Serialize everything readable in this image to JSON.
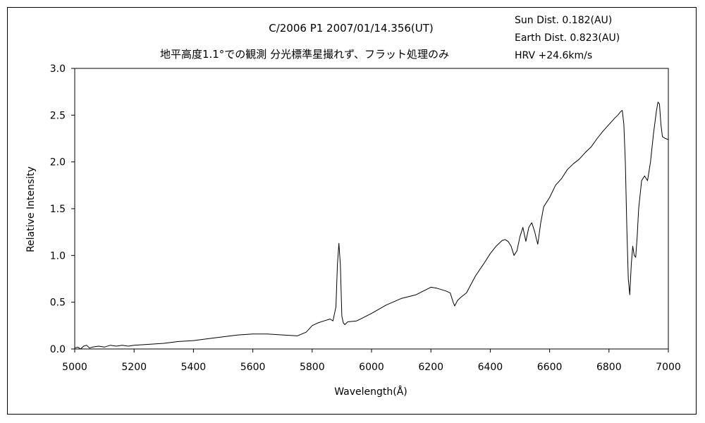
{
  "chart_data": {
    "type": "line",
    "title_line1": "C/2006 P1    2007/01/14.356(UT)",
    "title_line2": "地平高度1.1°での観測  分光標準星撮れず、フラット処理のみ",
    "info": [
      "Sun Dist. 0.182(AU)",
      "Earth Dist. 0.823(AU)",
      "HRV +24.6km/s"
    ],
    "xlabel": "Wavelength(Å)",
    "ylabel": "Relative Intensity",
    "xlim": [
      5000,
      7000
    ],
    "ylim": [
      0,
      3
    ],
    "xticks": [
      5000,
      5200,
      5400,
      5600,
      5800,
      6000,
      6200,
      6400,
      6600,
      6800,
      7000
    ],
    "yticks": [
      "0.0",
      "0.5",
      "1.0",
      "1.5",
      "2.0",
      "2.5",
      "3.0"
    ],
    "grid": false,
    "legend": "none",
    "series": [
      {
        "x": [
          5000,
          5010,
          5020,
          5030,
          5040,
          5050,
          5060,
          5080,
          5100,
          5120,
          5140,
          5160,
          5180,
          5200,
          5250,
          5300,
          5350,
          5400,
          5450,
          5500,
          5550,
          5600,
          5650,
          5700,
          5750,
          5780,
          5800,
          5820,
          5840,
          5860,
          5870,
          5880,
          5885,
          5890,
          5895,
          5900,
          5905,
          5910,
          5920,
          5950,
          6000,
          6050,
          6100,
          6150,
          6200,
          6220,
          6250,
          6265,
          6275,
          6280,
          6290,
          6300,
          6320,
          6350,
          6380,
          6400,
          6420,
          6440,
          6450,
          6460,
          6470,
          6480,
          6490,
          6500,
          6510,
          6520,
          6530,
          6540,
          6550,
          6555,
          6560,
          6570,
          6580,
          6600,
          6620,
          6640,
          6660,
          6680,
          6700,
          6720,
          6740,
          6760,
          6780,
          6800,
          6820,
          6830,
          6840,
          6845,
          6850,
          6855,
          6860,
          6865,
          6870,
          6875,
          6880,
          6885,
          6890,
          6895,
          6900,
          6910,
          6920,
          6930,
          6940,
          6950,
          6960,
          6965,
          6970,
          6975,
          6980,
          6990,
          7000
        ],
        "y": [
          0.01,
          0.02,
          0.0,
          0.03,
          0.04,
          0.01,
          0.02,
          0.03,
          0.02,
          0.04,
          0.03,
          0.04,
          0.03,
          0.04,
          0.05,
          0.06,
          0.08,
          0.09,
          0.11,
          0.13,
          0.15,
          0.16,
          0.16,
          0.15,
          0.14,
          0.18,
          0.25,
          0.28,
          0.3,
          0.32,
          0.3,
          0.45,
          0.9,
          1.13,
          0.9,
          0.35,
          0.28,
          0.26,
          0.29,
          0.3,
          0.38,
          0.47,
          0.54,
          0.58,
          0.66,
          0.65,
          0.62,
          0.6,
          0.5,
          0.46,
          0.52,
          0.55,
          0.6,
          0.78,
          0.92,
          1.02,
          1.1,
          1.16,
          1.17,
          1.15,
          1.1,
          1.0,
          1.05,
          1.2,
          1.3,
          1.15,
          1.3,
          1.35,
          1.25,
          1.18,
          1.12,
          1.35,
          1.52,
          1.62,
          1.75,
          1.82,
          1.92,
          1.98,
          2.03,
          2.1,
          2.16,
          2.25,
          2.33,
          2.4,
          2.47,
          2.5,
          2.54,
          2.55,
          2.4,
          2.0,
          1.3,
          0.75,
          0.58,
          0.9,
          1.1,
          1.0,
          0.98,
          1.2,
          1.5,
          1.8,
          1.85,
          1.8,
          2.0,
          2.3,
          2.55,
          2.64,
          2.62,
          2.4,
          2.27,
          2.25,
          2.24
        ]
      }
    ]
  }
}
